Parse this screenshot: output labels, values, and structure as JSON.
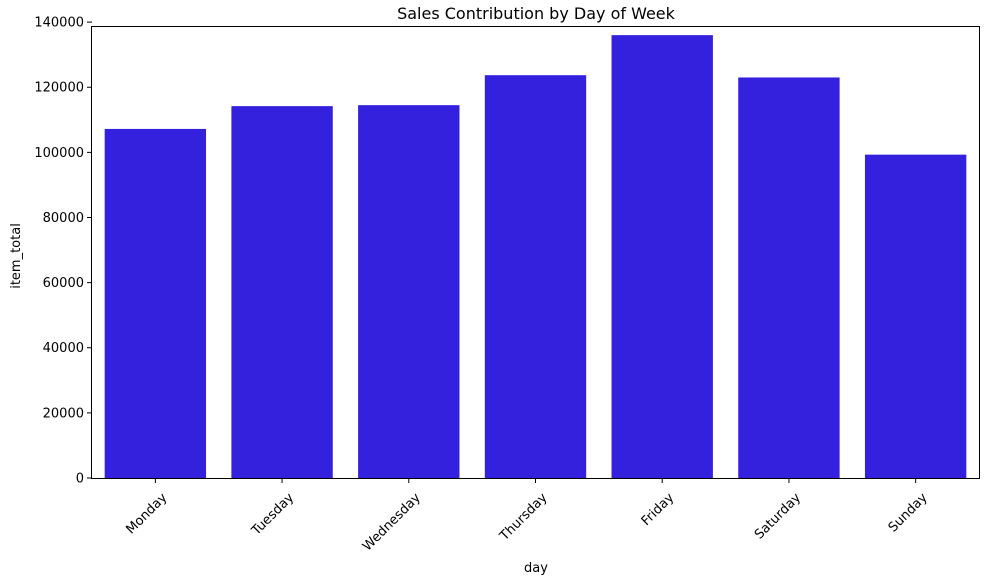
{
  "colors": {
    "bar": "#3321dd",
    "axis": "#000000",
    "background": "#ffffff"
  },
  "chart_data": {
    "type": "bar",
    "title": "Sales Contribution by Day of Week",
    "xlabel": "day",
    "ylabel": "item_total",
    "categories": [
      "Monday",
      "Tuesday",
      "Wednesday",
      "Thursday",
      "Friday",
      "Saturday",
      "Sunday"
    ],
    "values": [
      107200,
      114200,
      114500,
      123700,
      136000,
      123000,
      99300
    ],
    "ylim": [
      0,
      140000
    ],
    "yticks": [
      0,
      20000,
      40000,
      60000,
      80000,
      100000,
      120000,
      140000
    ],
    "ytick_labels": [
      "0",
      "20000",
      "40000",
      "60000",
      "80000",
      "100000",
      "120000",
      "140000"
    ],
    "grid": false,
    "legend": "none"
  }
}
